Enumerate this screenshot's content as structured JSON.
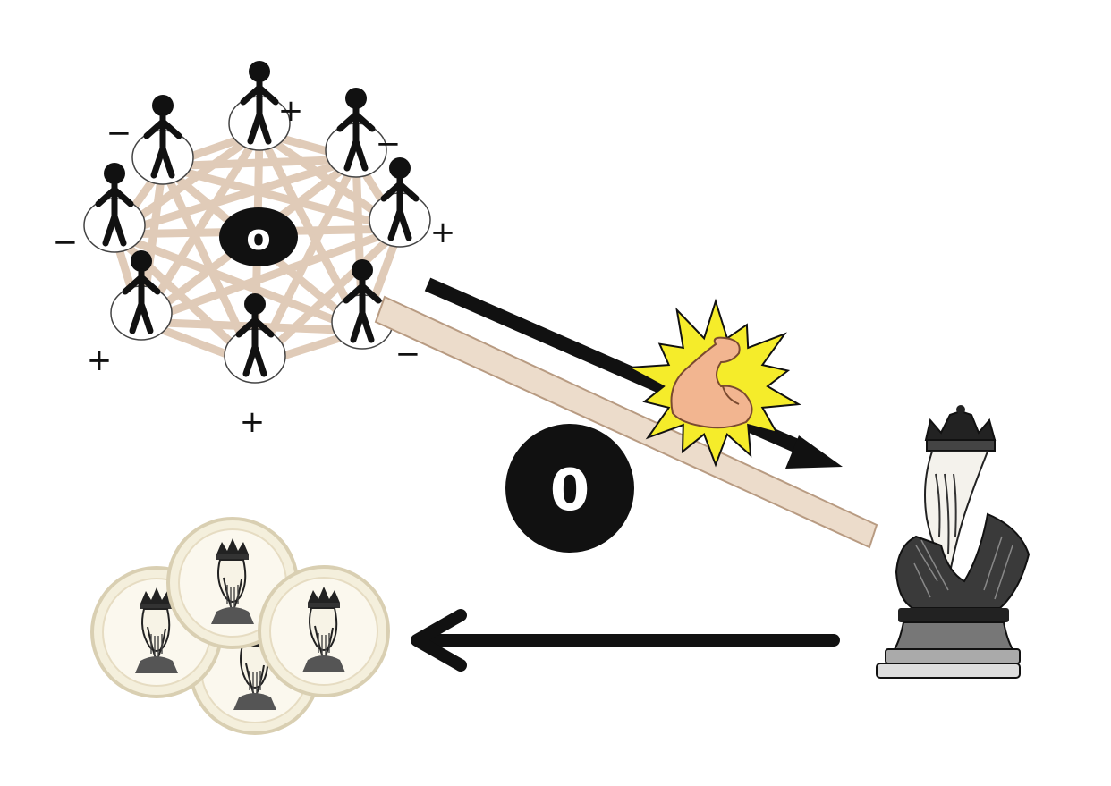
{
  "network": {
    "center_label": "o",
    "people": [
      {
        "sign": "+"
      },
      {
        "sign": "−"
      },
      {
        "sign": "+"
      },
      {
        "sign": "+"
      },
      {
        "sign": "−"
      },
      {
        "sign": "+"
      },
      {
        "sign": "−"
      },
      {
        "sign": "−"
      }
    ]
  },
  "fulcrum": {
    "label": "0"
  },
  "icons": {
    "strength": "flexed-bicep-icon",
    "ruler": "king-chess-piece-icon",
    "coins": "king-coin-icon"
  },
  "colors": {
    "rope": "#e0cbb8",
    "plank": "#ecdccb",
    "plank_stroke": "#b89b82",
    "burst": "#f5ec2a",
    "skin": "#f2b590",
    "coin": "#f4efdc"
  }
}
